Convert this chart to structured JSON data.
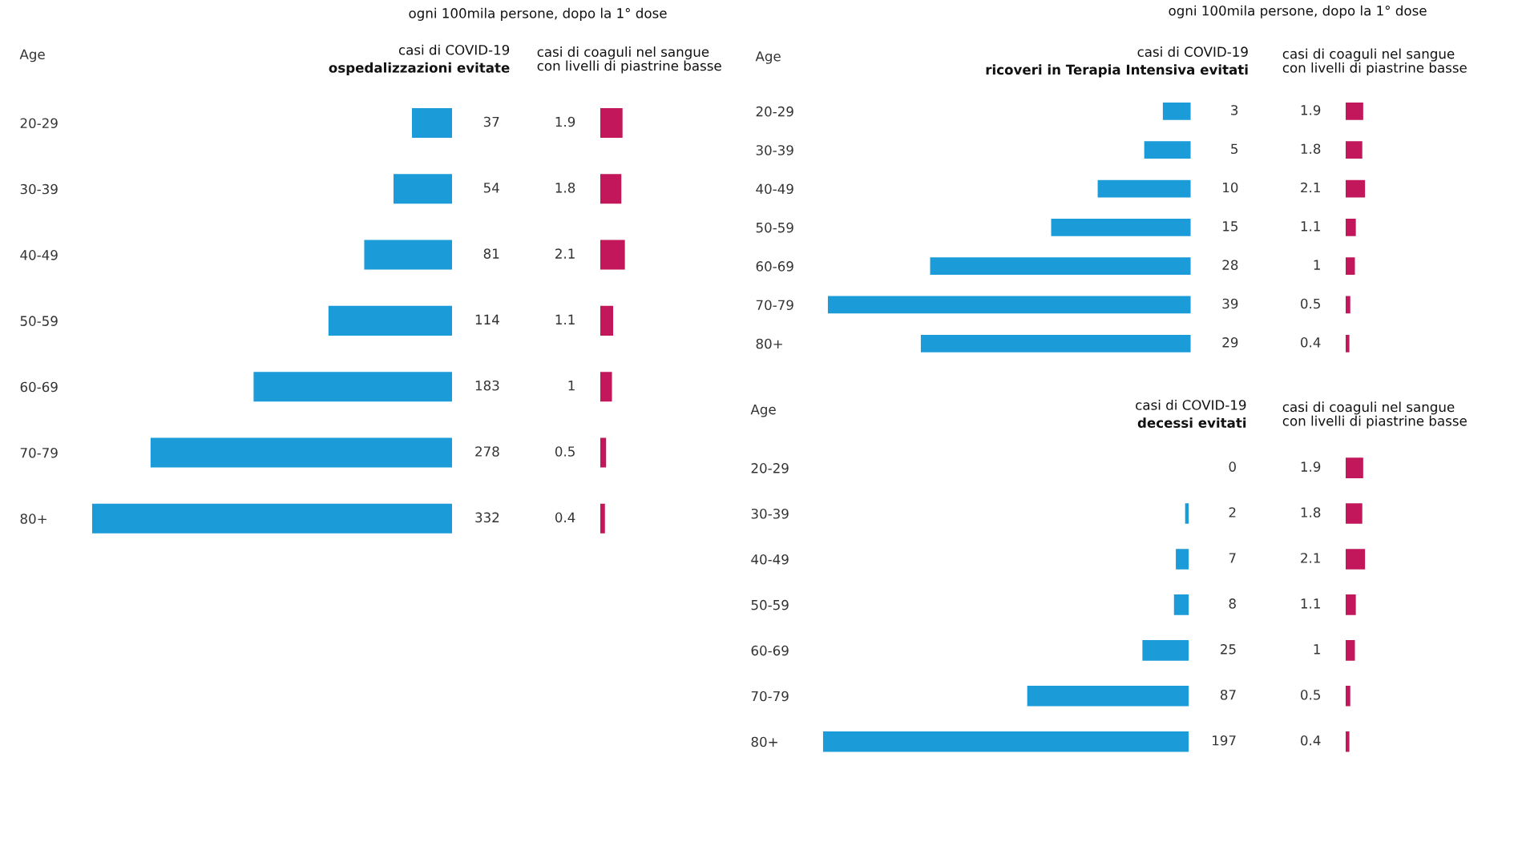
{
  "chart_data": [
    {
      "type": "bar",
      "orientation": "horizontal",
      "title": "ogni 100mila persone, dopo la 1° dose",
      "subtitle": "casi di COVID-19",
      "annotations": [
        "ospedalizzazioni evitate"
      ],
      "ylabel": "Age",
      "categories": [
        "20-29",
        "30-39",
        "40-49",
        "50-59",
        "60-69",
        "70-79",
        "80+"
      ],
      "values": [
        37,
        54,
        81,
        114,
        183,
        278,
        332
      ],
      "color": "#1b9bd7",
      "data_labels": true
    },
    {
      "type": "bar",
      "orientation": "horizontal",
      "subtitle": "casi di coaguli nel sangue\ncon livelli di piastrine basse",
      "categories": [
        null,
        null,
        null,
        null,
        null,
        null,
        null
      ],
      "values": [
        1.9,
        1.8,
        2.1,
        1.1,
        1,
        0.5,
        0.4
      ],
      "color": "#c2185b",
      "data_labels": true
    },
    {
      "type": "bar",
      "orientation": "horizontal",
      "title": "ogni 100mila persone, dopo la 1° dose",
      "subtitle": "casi di COVID-19",
      "annotations": [
        "ricoveri in Terapia Intensiva evitati"
      ],
      "ylabel": "Age",
      "categories": [
        "20-29",
        "30-39",
        "40-49",
        "50-59",
        "60-69",
        "70-79",
        "80+"
      ],
      "values": [
        3,
        5,
        10,
        15,
        28,
        39,
        29
      ],
      "color": "#1b9bd7",
      "data_labels": true
    },
    {
      "type": "bar",
      "orientation": "horizontal",
      "subtitle": "casi di coaguli nel sangue\ncon livelli di piastrine basse",
      "categories": [
        null,
        null,
        null,
        null,
        null,
        null,
        null
      ],
      "values": [
        1.9,
        1.8,
        2.1,
        1.1,
        1,
        0.5,
        0.4
      ],
      "color": "#c2185b",
      "data_labels": true
    },
    {
      "type": "bar",
      "orientation": "horizontal",
      "subtitle": "casi di COVID-19",
      "annotations": [
        "decessi evitati"
      ],
      "ylabel": "Age",
      "categories": [
        "20-29",
        "30-39",
        "40-49",
        "50-59",
        "60-69",
        "70-79",
        "80+"
      ],
      "values": [
        0,
        2,
        7,
        8,
        25,
        87,
        197
      ],
      "color": "#1b9bd7",
      "data_labels": true
    },
    {
      "type": "bar",
      "orientation": "horizontal",
      "subtitle": "casi di coaguli nel sangue\ncon livelli di piastrine basse",
      "categories": [
        null,
        null,
        null,
        null,
        null,
        null,
        null
      ],
      "values": [
        1.9,
        1.8,
        2.1,
        1.1,
        1,
        0.5,
        0.4
      ],
      "color": "#c2185b",
      "data_labels": true
    }
  ]
}
